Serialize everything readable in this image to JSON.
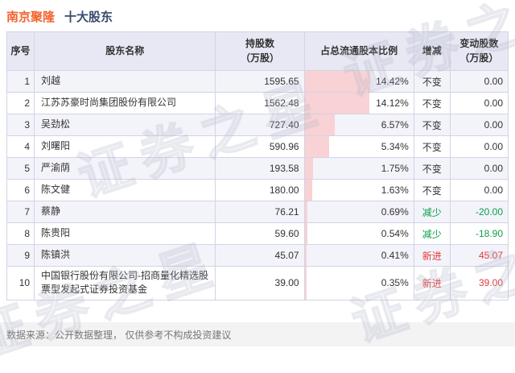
{
  "title": {
    "stock": "南京聚隆",
    "suffix": "十大股东"
  },
  "colors": {
    "accent_orange": "#f2632f",
    "title_navy": "#3a4a6e",
    "green": "#0a9e4a",
    "red": "#e23a3a",
    "bar_pink": "#f8d2d4"
  },
  "watermark": {
    "text": "证券之星"
  },
  "table": {
    "headers": [
      {
        "line1": "序号",
        "line2": ""
      },
      {
        "line1": "股东名称",
        "line2": ""
      },
      {
        "line1": "持股数",
        "line2": "（万股）"
      },
      {
        "line1": "占总流通股本比例",
        "line2": ""
      },
      {
        "line1": "增减",
        "line2": ""
      },
      {
        "line1": "变动股数",
        "line2": "（万股）"
      }
    ],
    "rows": [
      {
        "no": "1",
        "name": "刘越",
        "shares": "1595.65",
        "pct": "14.42%",
        "pct_value": 14.42,
        "change": "不变",
        "delta": "0.00"
      },
      {
        "no": "2",
        "name": "江苏苏豪时尚集团股份有限公司",
        "shares": "1562.48",
        "pct": "14.12%",
        "pct_value": 14.12,
        "change": "不变",
        "delta": "0.00"
      },
      {
        "no": "3",
        "name": "吴劲松",
        "shares": "727.40",
        "pct": "6.57%",
        "pct_value": 6.57,
        "change": "不变",
        "delta": "0.00"
      },
      {
        "no": "4",
        "name": "刘曙阳",
        "shares": "590.96",
        "pct": "5.34%",
        "pct_value": 5.34,
        "change": "不变",
        "delta": "0.00"
      },
      {
        "no": "5",
        "name": "严渝荫",
        "shares": "193.58",
        "pct": "1.75%",
        "pct_value": 1.75,
        "change": "不变",
        "delta": "0.00"
      },
      {
        "no": "6",
        "name": "陈文健",
        "shares": "180.00",
        "pct": "1.63%",
        "pct_value": 1.63,
        "change": "不变",
        "delta": "0.00"
      },
      {
        "no": "7",
        "name": "蔡静",
        "shares": "76.21",
        "pct": "0.69%",
        "pct_value": 0.69,
        "change": "减少",
        "delta": "-20.00"
      },
      {
        "no": "8",
        "name": "陈贵阳",
        "shares": "59.60",
        "pct": "0.54%",
        "pct_value": 0.54,
        "change": "减少",
        "delta": "-18.90"
      },
      {
        "no": "9",
        "name": "陈镇洪",
        "shares": "45.07",
        "pct": "0.41%",
        "pct_value": 0.41,
        "change": "新进",
        "delta": "45.07"
      },
      {
        "no": "10",
        "name": "中国银行股份有限公司-招商量化精选股票型发起式证券投资基金",
        "shares": "39.00",
        "pct": "0.35%",
        "pct_value": 0.35,
        "change": "新进",
        "delta": "39.00"
      }
    ]
  },
  "footer": {
    "text": "数据来源：公开数据整理， 仅供参考不构成投资建议"
  },
  "chart_data": {
    "type": "table",
    "title": "南京聚隆 十大股东",
    "columns": [
      "序号",
      "股东名称",
      "持股数（万股）",
      "占总流通股本比例",
      "增减",
      "变动股数（万股）"
    ],
    "shareholders": [
      "刘越",
      "江苏苏豪时尚集团股份有限公司",
      "吴劲松",
      "刘曙阳",
      "严渝荫",
      "陈文健",
      "蔡静",
      "陈贵阳",
      "陈镇洪",
      "中国银行股份有限公司-招商量化精选股票型发起式证券投资基金"
    ],
    "shares_wan": [
      1595.65,
      1562.48,
      727.4,
      590.96,
      193.58,
      180.0,
      76.21,
      59.6,
      45.07,
      39.0
    ],
    "pct_of_float": [
      14.42,
      14.12,
      6.57,
      5.34,
      1.75,
      1.63,
      0.69,
      0.54,
      0.41,
      0.35
    ],
    "change_status": [
      "不变",
      "不变",
      "不变",
      "不变",
      "不变",
      "不变",
      "减少",
      "减少",
      "新进",
      "新进"
    ],
    "change_shares_wan": [
      0.0,
      0.0,
      0.0,
      0.0,
      0.0,
      0.0,
      -20.0,
      -18.9,
      45.07,
      39.0
    ],
    "bar_column": "占总流通股本比例",
    "bar_style": "pink horizontal bars anchored left, full row height",
    "legend_position": "none",
    "grid": true
  }
}
